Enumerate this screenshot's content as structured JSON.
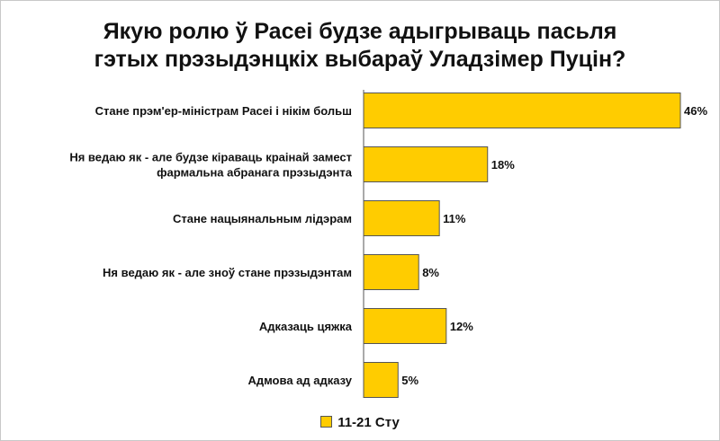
{
  "chart_data": {
    "type": "bar",
    "orientation": "horizontal",
    "title_lines": [
      "Якую ролю ў Расеі будзе адыгрываць пасьля",
      "гэтых прэзыдэнцкіх выбараў Уладзімер Пуцін?"
    ],
    "categories": [
      [
        "Стане прэм'ер-міністрам Расеі і нікім больш"
      ],
      [
        "Ня ведаю як - але будзе кіраваць краінай замест",
        "фармальна абранага прэзыдэнта"
      ],
      [
        "Стане нацыянальным лідэрам"
      ],
      [
        "Ня ведаю як - але зноў стане прэзыдэнтам"
      ],
      [
        "Адказаць цяжка"
      ],
      [
        "Адмова ад адказу"
      ]
    ],
    "series": [
      {
        "name": "11-21 Сту",
        "values": [
          46,
          18,
          11,
          8,
          12,
          5
        ],
        "labels": [
          "46%",
          "18%",
          "11%",
          "8%",
          "12%",
          "5%"
        ],
        "color": "#ffcc00"
      }
    ],
    "xlim": [
      0,
      46
    ],
    "grid": false,
    "legend": "bottom"
  }
}
